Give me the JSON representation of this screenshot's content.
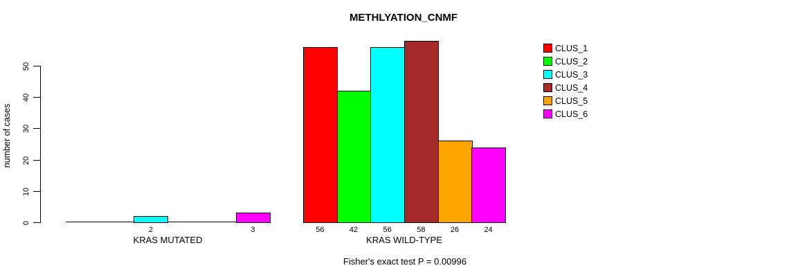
{
  "chart_data": {
    "type": "bar",
    "title": "METHLYATION_CNMF",
    "ylabel": "number of cases",
    "xlabel": "",
    "groups": [
      "KRAS MUTATED",
      "KRAS WILD-TYPE"
    ],
    "series": [
      {
        "name": "CLUS_1",
        "color": "#FF0000",
        "values": [
          0,
          56
        ]
      },
      {
        "name": "CLUS_2",
        "color": "#00FF00",
        "values": [
          0,
          42
        ]
      },
      {
        "name": "CLUS_3",
        "color": "#00FFFF",
        "values": [
          2,
          56
        ]
      },
      {
        "name": "CLUS_4",
        "color": "#A52A2A",
        "values": [
          0,
          58
        ]
      },
      {
        "name": "CLUS_5",
        "color": "#FFA500",
        "values": [
          0,
          26
        ]
      },
      {
        "name": "CLUS_6",
        "color": "#FF00FF",
        "values": [
          3,
          24
        ]
      }
    ],
    "yticks": [
      0,
      10,
      20,
      30,
      40,
      50
    ],
    "ylim": [
      0,
      58
    ],
    "grid": false,
    "legend_position": "top-right",
    "bar_border_color": "#000000",
    "axis_color": "#000000",
    "annotation": "Fisher's exact test P = 0.00996"
  }
}
